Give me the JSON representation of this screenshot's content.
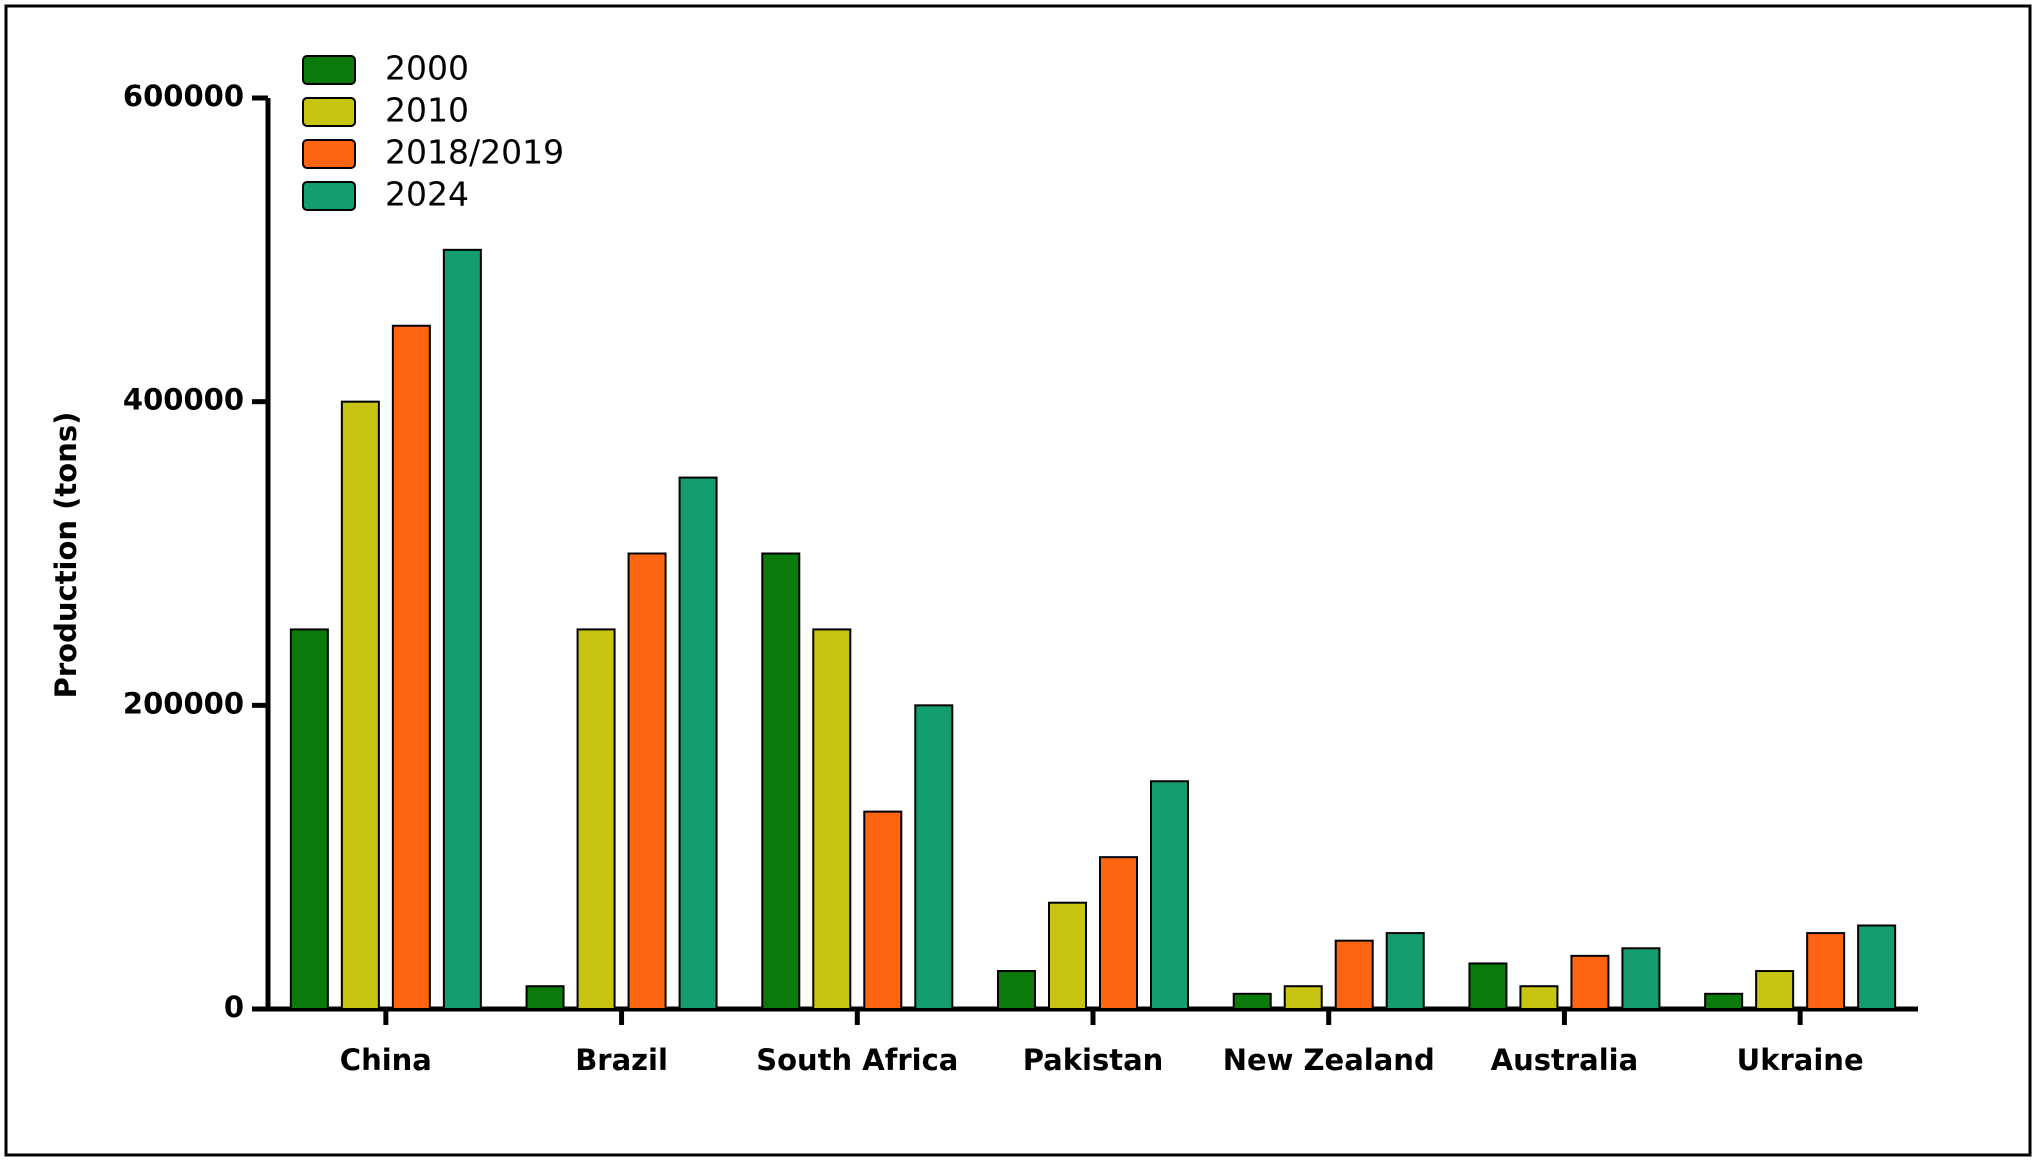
{
  "chart_data": {
    "type": "bar",
    "y_label": "Production (tons)",
    "categories": [
      "China",
      "Brazil",
      "South Africa",
      "Pakistan",
      "New Zealand",
      "Australia",
      "Ukraine"
    ],
    "series": [
      {
        "name": "2000",
        "color": "#0a7a0a",
        "values": [
          250000,
          15000,
          300000,
          25000,
          10000,
          30000,
          10000
        ]
      },
      {
        "name": "2010",
        "color": "#c8c414",
        "values": [
          400000,
          250000,
          250000,
          70000,
          15000,
          15000,
          25000
        ]
      },
      {
        "name": "2018/2019",
        "color": "#ff6412",
        "values": [
          450000,
          300000,
          130000,
          100000,
          45000,
          35000,
          50000
        ]
      },
      {
        "name": "2024",
        "color": "#149e6e",
        "values": [
          500000,
          350000,
          200000,
          150000,
          50000,
          40000,
          55000
        ]
      }
    ],
    "ylim": [
      0,
      600000
    ],
    "yticks": [
      0,
      200000,
      400000,
      600000
    ],
    "grid": false
  }
}
